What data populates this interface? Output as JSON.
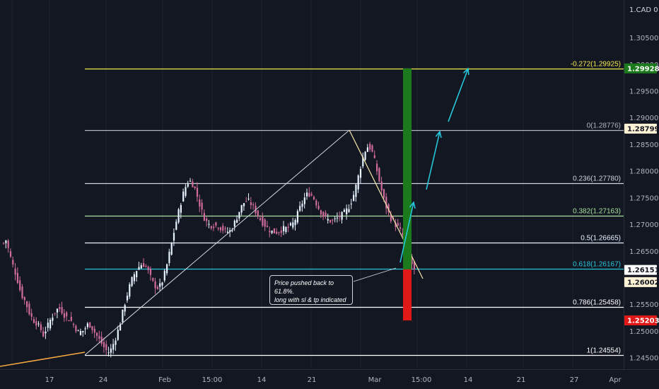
{
  "currency": "1.CAD 0",
  "annotation": {
    "line1": "Price pushed back to 61.8%.",
    "line2": "long with sl & tp indicated"
  },
  "colors": {
    "background": "#131722",
    "up": "#e6f3ff",
    "down": "#d06b9c",
    "fib_extension": "#f5e74e",
    "fib_000": "#b2b5be",
    "fib_0236": "#d1d4dc",
    "fib_0382": "#a7e0a0",
    "fib_05": "#e6f3ff",
    "fib_0618": "#26c6da",
    "fib_0786": "#ffffff",
    "fib_1": "#ffffff",
    "target": "#1b7a1b",
    "stop": "#e01818",
    "arrow": "#26c6da",
    "trend_orange": "#f5a742",
    "trend_white": "#d1d4dc"
  },
  "chart_data": {
    "type": "candlestick",
    "symbol_currency": "CAD",
    "x_ticks": [
      "17",
      "24",
      "Feb",
      "15:00",
      "14",
      "21",
      "Mar",
      "15:00",
      "14",
      "21",
      "27",
      "Apr"
    ],
    "y_ticks": [
      "1.30500",
      "1.30000",
      "1.29500",
      "1.29000",
      "1.28500",
      "1.28000",
      "1.27500",
      "1.27000",
      "1.26500",
      "1.25500",
      "1.25000",
      "1.24500"
    ],
    "ylim": [
      1.244,
      1.309
    ],
    "fib_levels": [
      {
        "label": "-0.272(1.29925)",
        "value": 1.29925,
        "color_key": "fib_extension"
      },
      {
        "label": "0(1.28776)",
        "value": 1.28776,
        "color_key": "fib_000"
      },
      {
        "label": "0.236(1.27780)",
        "value": 1.2778,
        "color_key": "fib_0236"
      },
      {
        "label": "0.382(1.27163)",
        "value": 1.27163,
        "color_key": "fib_0382"
      },
      {
        "label": "0.5(1.26665)",
        "value": 1.26665,
        "color_key": "fib_05"
      },
      {
        "label": "0.618(1.26167)",
        "value": 1.26167,
        "color_key": "fib_0618"
      },
      {
        "label": "0.786(1.25458)",
        "value": 1.25458,
        "color_key": "fib_0786"
      },
      {
        "label": "1(1.24554)",
        "value": 1.24554,
        "color_key": "fib_1"
      }
    ],
    "price_badges": [
      {
        "text": "1.29928",
        "value": 1.29928,
        "bg": "#1b7a1b",
        "fg": "#ffffff"
      },
      {
        "text": "1.28799",
        "value": 1.28799,
        "bg": "#fff3d6",
        "fg": "#131722"
      },
      {
        "text": "1.26151",
        "value": 1.26151,
        "bg": "#ffffff",
        "fg": "#131722"
      },
      {
        "text": "1.26002",
        "value": 1.26002,
        "bg": "#fff3d6",
        "fg": "#131722"
      },
      {
        "text": "1.25203",
        "value": 1.25203,
        "bg": "#e01818",
        "fg": "#ffffff"
      }
    ],
    "position": {
      "entry": 1.2616,
      "target": 1.29928,
      "stop": 1.25203
    },
    "closes": [
      1.2665,
      1.2671,
      1.2655,
      1.2638,
      1.2623,
      1.261,
      1.2595,
      1.2578,
      1.2566,
      1.2558,
      1.2547,
      1.2535,
      1.2526,
      1.252,
      1.2516,
      1.2509,
      1.2503,
      1.2493,
      1.2502,
      1.2511,
      1.2521,
      1.2529,
      1.2536,
      1.2541,
      1.2542,
      1.2538,
      1.2531,
      1.2526,
      1.2523,
      1.2519,
      1.2512,
      1.2505,
      1.2498,
      1.2499,
      1.2501,
      1.2506,
      1.2512,
      1.2512,
      1.2506,
      1.2498,
      1.2491,
      1.2484,
      1.2477,
      1.247,
      1.2464,
      1.2461,
      1.2466,
      1.2476,
      1.2488,
      1.2501,
      1.2517,
      1.2535,
      1.2553,
      1.2569,
      1.2584,
      1.2597,
      1.2607,
      1.2615,
      1.2621,
      1.2625,
      1.2625,
      1.2621,
      1.2612,
      1.2601,
      1.2591,
      1.2585,
      1.2582,
      1.2585,
      1.2594,
      1.2608,
      1.2625,
      1.2645,
      1.2665,
      1.2686,
      1.2706,
      1.2724,
      1.2742,
      1.2758,
      1.2771,
      1.2779,
      1.2781,
      1.2776,
      1.2767,
      1.2753,
      1.2738,
      1.2724,
      1.2713,
      1.2705,
      1.27,
      1.2699,
      1.2699,
      1.2698,
      1.2697,
      1.2694,
      1.2691,
      1.2688,
      1.2687,
      1.2688,
      1.2694,
      1.2704,
      1.2714,
      1.2725,
      1.2734,
      1.2741,
      1.2744,
      1.2743,
      1.2739,
      1.2732,
      1.2725,
      1.2717,
      1.271,
      1.2704,
      1.2699,
      1.2694,
      1.269,
      1.2687,
      1.2686,
      1.2686,
      1.2688,
      1.269,
      1.2692,
      1.2693,
      1.2694,
      1.2697,
      1.2702,
      1.271,
      1.272,
      1.2731,
      1.2741,
      1.275,
      1.2756,
      1.2758,
      1.2755,
      1.2749,
      1.274,
      1.2731,
      1.2724,
      1.2717,
      1.2712,
      1.2709,
      1.2707,
      1.2707,
      1.2709,
      1.2712,
      1.2715,
      1.2718,
      1.2722,
      1.2727,
      1.2734,
      1.2744,
      1.2756,
      1.2772,
      1.279,
      1.2809,
      1.2826,
      1.2839,
      1.2846,
      1.2844,
      1.2835,
      1.2819,
      1.2801,
      1.2782,
      1.2764,
      1.2747,
      1.2733,
      1.2721,
      1.2712,
      1.2706,
      1.27,
      1.2695,
      1.2688,
      1.268,
      1.2669,
      1.2656,
      1.2641,
      1.2626,
      1.2613
    ],
    "annotation_text": [
      "Price pushed back to 61.8%.",
      "long with sl & tp indicated"
    ]
  }
}
